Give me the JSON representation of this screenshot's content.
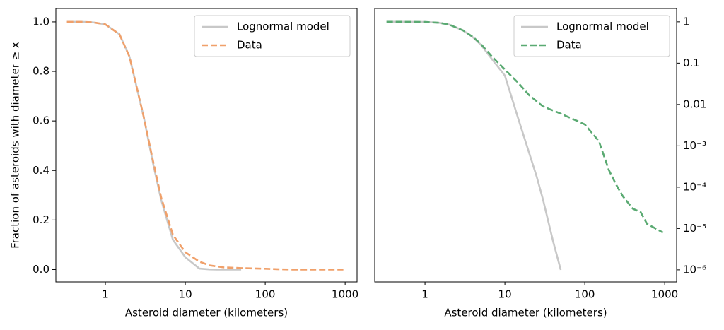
{
  "chart_data": [
    {
      "type": "line",
      "xlabel": "Asteroid diameter (kilometers)",
      "ylabel": "Fraction of asteroids with diameter ≥ x",
      "xscale": "log",
      "yscale": "linear",
      "xlim": [
        0.24,
        1410
      ],
      "ylim": [
        -0.05,
        1.054
      ],
      "xticks": [
        1,
        10,
        100,
        1000
      ],
      "yticks": [
        {
          "value": 0,
          "label": "0.0"
        },
        0.2,
        0.4,
        0.6,
        0.8,
        {
          "value": 1,
          "label": "1.0"
        }
      ],
      "y_axis_side": "left",
      "legend": "upper right",
      "grid": false,
      "series": [
        {
          "name": "Lognormal model",
          "color": "#c8c8c8",
          "linestyle": "solid",
          "x": [
            0.33,
            0.5,
            0.7,
            1,
            1.5,
            2,
            3,
            4,
            5,
            7,
            10,
            15,
            20,
            25,
            30,
            40,
            50
          ],
          "values": [
            1,
            1,
            0.998,
            0.99,
            0.95,
            0.86,
            0.62,
            0.42,
            0.28,
            0.12,
            0.05,
            0.004,
            0.0007,
            0.00018,
            5e-05,
            5e-06,
            1e-06
          ]
        },
        {
          "name": "Data",
          "color": "#f0a06a",
          "linestyle": "dashed",
          "x": [
            0.33,
            0.5,
            0.7,
            1,
            1.5,
            2,
            3,
            4,
            5,
            7,
            10,
            15,
            20,
            30,
            50,
            70,
            100,
            150,
            200,
            250,
            300,
            400,
            500,
            600,
            950
          ],
          "values": [
            1,
            1,
            0.998,
            0.99,
            0.95,
            0.86,
            0.62,
            0.43,
            0.29,
            0.14,
            0.07,
            0.032,
            0.017,
            0.009,
            0.006,
            0.0045,
            0.0033,
            0.0013,
            0.00026,
            0.00011,
            6e-05,
            3e-05,
            2.5e-05,
            1.3e-05,
            8e-06
          ]
        }
      ]
    },
    {
      "type": "line",
      "xlabel": "Asteroid diameter (kilometers)",
      "xscale": "log",
      "yscale": "log",
      "xlim": [
        0.235,
        1410
      ],
      "ylim": [
        5.1e-07,
        2.1
      ],
      "xticks": [
        1,
        10,
        100,
        1000
      ],
      "yticks": [
        1,
        0.1,
        0.01,
        {
          "value": 0.001,
          "label": "10⁻³"
        },
        {
          "value": 0.0001,
          "label": "10⁻⁴"
        },
        {
          "value": 1e-05,
          "label": "10⁻⁵"
        },
        {
          "value": 1e-06,
          "label": "10⁻⁶"
        }
      ],
      "y_axis_side": "right",
      "legend": "upper right",
      "grid": false,
      "series": [
        {
          "name": "Lognormal model",
          "color": "#c8c8c8",
          "linestyle": "solid",
          "x": [
            0.33,
            0.5,
            0.7,
            1,
            1.5,
            2,
            3,
            4,
            5,
            7,
            10,
            15,
            20,
            25,
            30,
            40,
            50
          ],
          "values": [
            1,
            1,
            0.998,
            0.99,
            0.95,
            0.86,
            0.62,
            0.42,
            0.28,
            0.12,
            0.05,
            0.004,
            0.0007,
            0.00018,
            5e-05,
            5e-06,
            1e-06
          ]
        },
        {
          "name": "Data",
          "color": "#5aaa72",
          "linestyle": "dashed",
          "x": [
            0.33,
            0.5,
            0.7,
            1,
            1.5,
            2,
            3,
            4,
            5,
            7,
            10,
            15,
            20,
            30,
            50,
            70,
            100,
            150,
            200,
            250,
            300,
            400,
            500,
            600,
            950
          ],
          "values": [
            1,
            1,
            0.998,
            0.99,
            0.95,
            0.86,
            0.62,
            0.43,
            0.29,
            0.14,
            0.07,
            0.032,
            0.017,
            0.009,
            0.006,
            0.0045,
            0.0033,
            0.0013,
            0.00026,
            0.00011,
            6e-05,
            3e-05,
            2.5e-05,
            1.3e-05,
            8e-06
          ]
        }
      ]
    }
  ]
}
